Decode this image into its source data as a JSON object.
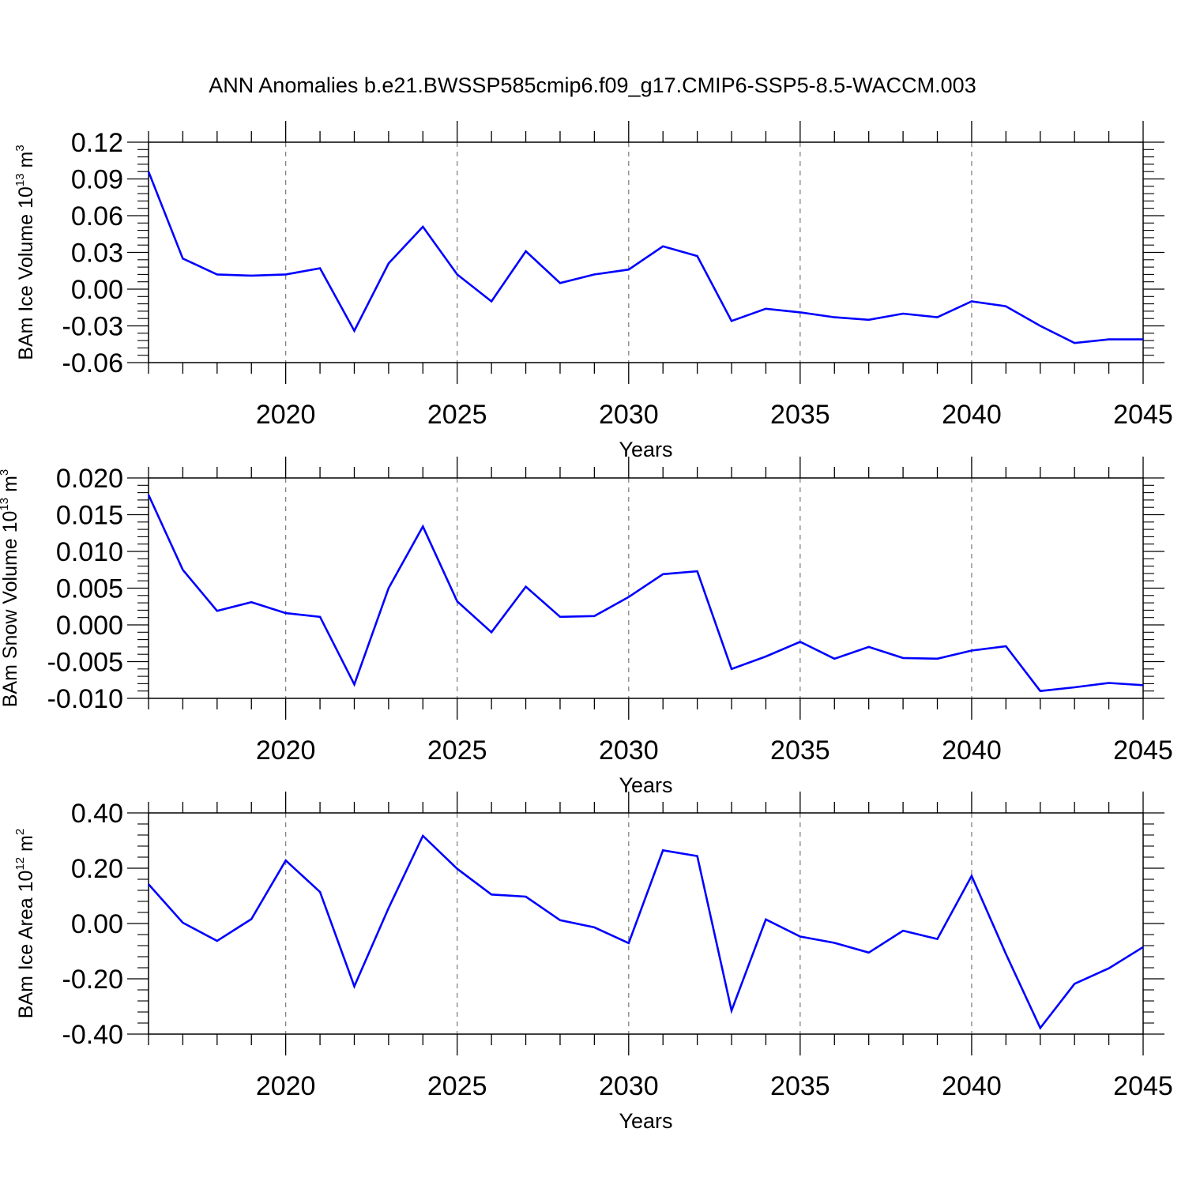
{
  "chart_data": [
    {
      "type": "line",
      "title": "ANN Anomalies b.e21.BWSSP585cmip6.f09_g17.CMIP6-SSP5-8.5-WACCM.003",
      "ylabel": "BAm Ice Volume 10",
      "ylabel_exp": "13",
      "ylabel_unit": " m",
      "ylabel_unit_exp": "3",
      "xlabel": "Years",
      "xlim": [
        2016,
        2045
      ],
      "ylim": [
        -0.06,
        0.12
      ],
      "x_ticks": [
        2020,
        2025,
        2030,
        2035,
        2040,
        2045
      ],
      "y_ticks": [
        -0.06,
        -0.03,
        0.0,
        0.03,
        0.06,
        0.09,
        0.12
      ],
      "y_tick_labels": [
        "-0.06",
        "-0.03",
        "0.00",
        "0.03",
        "0.06",
        "0.09",
        "0.12"
      ],
      "line_color": "#0000ff",
      "grid": "vertical dashed at major x ticks",
      "x": [
        2016,
        2017,
        2018,
        2019,
        2020,
        2021,
        2022,
        2023,
        2024,
        2025,
        2026,
        2027,
        2028,
        2029,
        2030,
        2031,
        2032,
        2033,
        2034,
        2035,
        2036,
        2037,
        2038,
        2039,
        2040,
        2041,
        2042,
        2043,
        2044,
        2045
      ],
      "values": [
        0.096,
        0.025,
        0.012,
        0.011,
        0.012,
        0.017,
        -0.034,
        0.021,
        0.051,
        0.012,
        -0.01,
        0.031,
        0.005,
        0.012,
        0.016,
        0.035,
        0.027,
        -0.026,
        -0.016,
        -0.019,
        -0.023,
        -0.025,
        -0.02,
        -0.023,
        -0.01,
        -0.014,
        -0.03,
        -0.044,
        -0.041,
        -0.041
      ]
    },
    {
      "type": "line",
      "ylabel": "BAm Snow Volume 10",
      "ylabel_exp": "13",
      "ylabel_unit": " m",
      "ylabel_unit_exp": "3",
      "xlabel": "Years",
      "xlim": [
        2016,
        2045
      ],
      "ylim": [
        -0.01,
        0.02
      ],
      "x_ticks": [
        2020,
        2025,
        2030,
        2035,
        2040,
        2045
      ],
      "y_ticks": [
        -0.01,
        -0.005,
        0.0,
        0.005,
        0.01,
        0.015,
        0.02
      ],
      "y_tick_labels": [
        "-0.010",
        "-0.005",
        "0.000",
        "0.005",
        "0.010",
        "0.015",
        "0.020"
      ],
      "line_color": "#0000ff",
      "grid": "vertical dashed at major x ticks",
      "x": [
        2016,
        2017,
        2018,
        2019,
        2020,
        2021,
        2022,
        2023,
        2024,
        2025,
        2026,
        2027,
        2028,
        2029,
        2030,
        2031,
        2032,
        2033,
        2034,
        2035,
        2036,
        2037,
        2038,
        2039,
        2040,
        2041,
        2042,
        2043,
        2044,
        2045
      ],
      "values": [
        0.0177,
        0.0075,
        0.0019,
        0.0031,
        0.0016,
        0.0011,
        -0.0081,
        0.005,
        0.0134,
        0.0032,
        -0.001,
        0.0052,
        0.0011,
        0.0012,
        0.0038,
        0.0069,
        0.0073,
        -0.006,
        -0.0043,
        -0.0023,
        -0.0046,
        -0.003,
        -0.0045,
        -0.0046,
        -0.0035,
        -0.0029,
        -0.009,
        -0.0085,
        -0.0079,
        -0.0082
      ]
    },
    {
      "type": "line",
      "ylabel": "BAm Ice Area 10",
      "ylabel_exp": "12",
      "ylabel_unit": " m",
      "ylabel_unit_exp": "2",
      "xlabel": "Years",
      "xlim": [
        2016,
        2045
      ],
      "ylim": [
        -0.4,
        0.4
      ],
      "x_ticks": [
        2020,
        2025,
        2030,
        2035,
        2040,
        2045
      ],
      "y_ticks": [
        -0.4,
        -0.2,
        0.0,
        0.2,
        0.4
      ],
      "y_tick_labels": [
        "-0.40",
        "-0.20",
        "0.00",
        "0.20",
        "0.40"
      ],
      "line_color": "#0000ff",
      "grid": "vertical dashed at major x ticks",
      "x": [
        2016,
        2017,
        2018,
        2019,
        2020,
        2021,
        2022,
        2023,
        2024,
        2025,
        2026,
        2027,
        2028,
        2029,
        2030,
        2031,
        2032,
        2033,
        2034,
        2035,
        2036,
        2037,
        2038,
        2039,
        2040,
        2041,
        2042,
        2043,
        2044,
        2045
      ],
      "values": [
        0.142,
        0.003,
        -0.063,
        0.016,
        0.228,
        0.114,
        -0.227,
        0.056,
        0.317,
        0.198,
        0.105,
        0.097,
        0.012,
        -0.014,
        -0.071,
        0.265,
        0.244,
        -0.315,
        0.015,
        -0.047,
        -0.07,
        -0.105,
        -0.026,
        -0.056,
        0.172,
        -0.11,
        -0.378,
        -0.218,
        -0.162,
        -0.085
      ]
    }
  ]
}
